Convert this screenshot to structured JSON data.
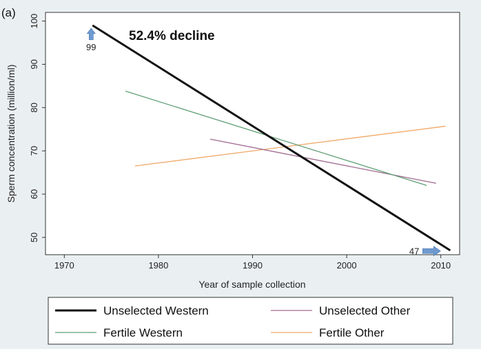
{
  "chart_data": {
    "type": "line",
    "panel_label": "(a)",
    "xlabel": "Year of sample collection",
    "ylabel": "Sperm concentration (million/ml)",
    "xlim": [
      1968,
      2012
    ],
    "ylim": [
      46,
      102
    ],
    "xticks": [
      1970,
      1980,
      1990,
      2000,
      2010
    ],
    "yticks": [
      50,
      60,
      70,
      80,
      90,
      100
    ],
    "grid": false,
    "legend_position": "bottom",
    "series": [
      {
        "name": "Unselected Western",
        "color": "#111111",
        "width": 3,
        "x": [
          1973,
          2011
        ],
        "y": [
          99,
          47
        ]
      },
      {
        "name": "Unselected Other",
        "color": "#a06a8f",
        "width": 1.3,
        "x": [
          1985.5,
          2009.5
        ],
        "y": [
          72.7,
          62.5
        ]
      },
      {
        "name": "Fertile Western",
        "color": "#5e9e74",
        "width": 1.3,
        "x": [
          1976.5,
          2008.5
        ],
        "y": [
          83.8,
          62
        ]
      },
      {
        "name": "Fertile Other",
        "color": "#f0a868",
        "width": 1.3,
        "x": [
          1977.5,
          2010.5
        ],
        "y": [
          66.5,
          75.7
        ]
      }
    ],
    "annotations": [
      {
        "text": "52.4% decline",
        "style": "bold"
      },
      {
        "text": "99",
        "style": "arrow-up",
        "x": 1973,
        "y": 99
      },
      {
        "text": "47",
        "style": "arrow-right",
        "x": 2011,
        "y": 47
      }
    ],
    "arrow_color": "#6f9ad0"
  }
}
